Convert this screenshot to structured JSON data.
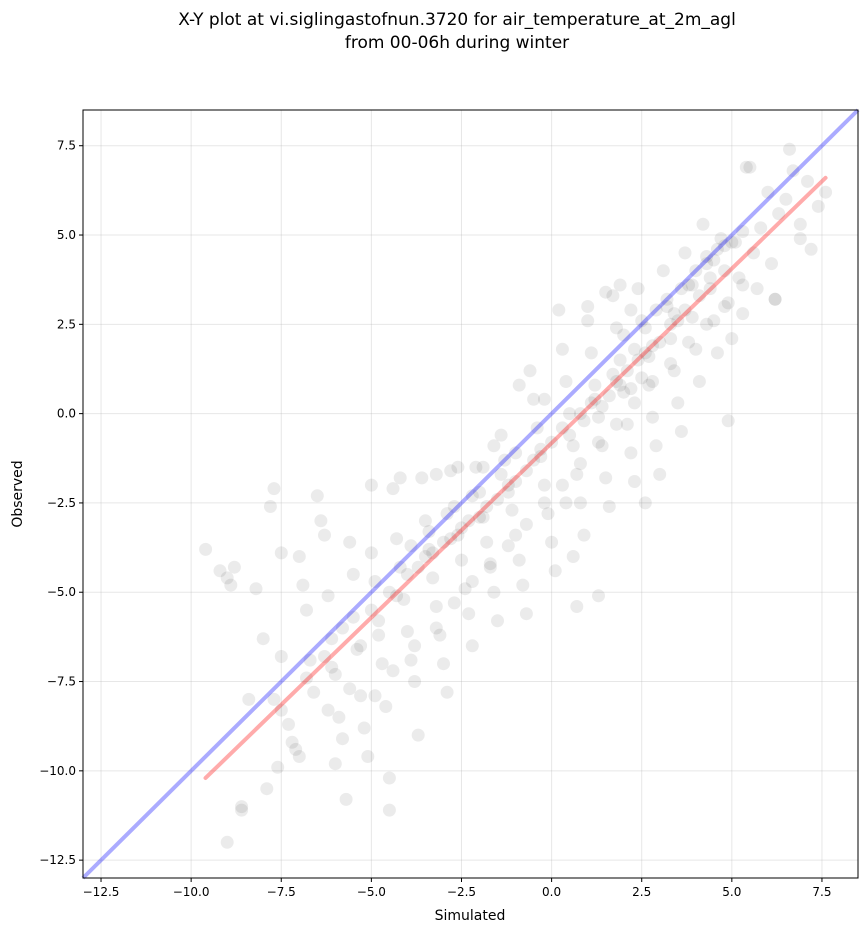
{
  "chart_data": {
    "type": "scatter",
    "title_lines": [
      "X-Y plot at vi.siglingastofnun.3720 for air_temperature_at_2m_agl",
      "from 00-06h during winter"
    ],
    "xlabel": "Simulated",
    "ylabel": "Observed",
    "xlim": [
      -13.0,
      8.5
    ],
    "ylim": [
      -13.0,
      8.5
    ],
    "xticks": [
      -12.5,
      -10.0,
      -7.5,
      -5.0,
      -2.5,
      0.0,
      2.5,
      5.0,
      7.5
    ],
    "yticks": [
      -12.5,
      -10.0,
      -7.5,
      -5.0,
      -2.5,
      0.0,
      2.5,
      5.0,
      7.5
    ],
    "xtick_labels": [
      "−12.5",
      "−10.0",
      "−7.5",
      "−5.0",
      "−2.5",
      "0.0",
      "2.5",
      "5.0",
      "7.5"
    ],
    "ytick_labels": [
      "−12.5",
      "−10.0",
      "−7.5",
      "−5.0",
      "−2.5",
      "0.0",
      "2.5",
      "5.0",
      "7.5"
    ],
    "grid": true,
    "point_color": "#000000",
    "identity_line_color": "#0000ff",
    "fit_line_color": "#ff0000",
    "identity_line": {
      "x": [
        -13.0,
        8.5
      ],
      "y": [
        -13.0,
        8.5
      ]
    },
    "fit_line": {
      "x": [
        -9.6,
        7.6
      ],
      "y": [
        -10.2,
        6.6
      ]
    },
    "points": [
      [
        -9.6,
        -3.8
      ],
      [
        -9.2,
        -4.4
      ],
      [
        -9.0,
        -4.6
      ],
      [
        -8.9,
        -4.8
      ],
      [
        -8.8,
        -4.3
      ],
      [
        -9.0,
        -12.0
      ],
      [
        -8.6,
        -11.0
      ],
      [
        -8.6,
        -11.1
      ],
      [
        -8.2,
        -4.9
      ],
      [
        -8.0,
        -6.3
      ],
      [
        -7.8,
        -2.6
      ],
      [
        -7.7,
        -2.1
      ],
      [
        -7.5,
        -3.9
      ],
      [
        -7.5,
        -6.8
      ],
      [
        -7.5,
        -8.3
      ],
      [
        -7.3,
        -8.7
      ],
      [
        -7.2,
        -9.2
      ],
      [
        -7.1,
        -9.4
      ],
      [
        -7.0,
        -9.6
      ],
      [
        -7.0,
        -4.0
      ],
      [
        -6.9,
        -4.8
      ],
      [
        -6.8,
        -5.5
      ],
      [
        -6.7,
        -6.9
      ],
      [
        -6.6,
        -7.8
      ],
      [
        -6.5,
        -2.3
      ],
      [
        -6.4,
        -3.0
      ],
      [
        -6.3,
        -3.4
      ],
      [
        -6.2,
        -5.1
      ],
      [
        -6.1,
        -6.3
      ],
      [
        -6.0,
        -7.3
      ],
      [
        -5.9,
        -8.5
      ],
      [
        -5.8,
        -9.1
      ],
      [
        -5.7,
        -10.8
      ],
      [
        -5.6,
        -3.6
      ],
      [
        -5.5,
        -4.5
      ],
      [
        -5.5,
        -5.7
      ],
      [
        -5.4,
        -6.6
      ],
      [
        -5.3,
        -7.9
      ],
      [
        -5.2,
        -8.8
      ],
      [
        -5.1,
        -9.6
      ],
      [
        -5.0,
        -2.0
      ],
      [
        -5.0,
        -3.9
      ],
      [
        -4.9,
        -4.7
      ],
      [
        -4.8,
        -5.8
      ],
      [
        -4.7,
        -7.0
      ],
      [
        -4.6,
        -8.2
      ],
      [
        -4.5,
        -10.2
      ],
      [
        -4.5,
        -11.1
      ],
      [
        -4.4,
        -2.1
      ],
      [
        -4.3,
        -3.5
      ],
      [
        -4.2,
        -4.3
      ],
      [
        -4.1,
        -5.2
      ],
      [
        -4.0,
        -6.1
      ],
      [
        -3.9,
        -6.9
      ],
      [
        -3.8,
        -7.5
      ],
      [
        -3.7,
        -9.0
      ],
      [
        -3.6,
        -1.8
      ],
      [
        -3.5,
        -3.0
      ],
      [
        -3.4,
        -3.8
      ],
      [
        -3.3,
        -4.6
      ],
      [
        -3.2,
        -5.4
      ],
      [
        -3.1,
        -6.2
      ],
      [
        -3.0,
        -7.0
      ],
      [
        -2.9,
        -7.8
      ],
      [
        -2.8,
        -1.6
      ],
      [
        -2.7,
        -2.6
      ],
      [
        -2.6,
        -3.4
      ],
      [
        -2.5,
        -4.1
      ],
      [
        -2.4,
        -4.9
      ],
      [
        -2.3,
        -5.6
      ],
      [
        -2.2,
        -6.5
      ],
      [
        -2.1,
        -1.5
      ],
      [
        -2.0,
        -2.2
      ],
      [
        -1.9,
        -2.9
      ],
      [
        -1.8,
        -3.6
      ],
      [
        -1.7,
        -4.3
      ],
      [
        -1.6,
        -5.0
      ],
      [
        -1.5,
        -5.8
      ],
      [
        -1.4,
        -0.6
      ],
      [
        -1.3,
        -1.3
      ],
      [
        -1.2,
        -2.0
      ],
      [
        -1.1,
        -2.7
      ],
      [
        -1.0,
        -3.4
      ],
      [
        -0.9,
        -4.1
      ],
      [
        -0.8,
        -4.8
      ],
      [
        -0.7,
        -5.6
      ],
      [
        -0.6,
        1.2
      ],
      [
        -0.5,
        0.4
      ],
      [
        -0.4,
        -0.4
      ],
      [
        -0.3,
        -1.2
      ],
      [
        -0.2,
        -2.0
      ],
      [
        -0.1,
        -2.8
      ],
      [
        0.0,
        -3.6
      ],
      [
        0.1,
        -4.4
      ],
      [
        0.2,
        2.9
      ],
      [
        0.3,
        1.8
      ],
      [
        0.4,
        0.9
      ],
      [
        0.5,
        0.0
      ],
      [
        0.6,
        -0.9
      ],
      [
        0.7,
        -1.7
      ],
      [
        0.8,
        -2.5
      ],
      [
        0.9,
        -3.4
      ],
      [
        1.0,
        2.6
      ],
      [
        1.1,
        1.7
      ],
      [
        1.2,
        0.8
      ],
      [
        1.3,
        -0.1
      ],
      [
        1.4,
        -0.9
      ],
      [
        1.5,
        -1.8
      ],
      [
        1.6,
        -2.6
      ],
      [
        1.7,
        3.3
      ],
      [
        1.8,
        2.4
      ],
      [
        1.9,
        1.5
      ],
      [
        2.0,
        0.6
      ],
      [
        2.1,
        -0.3
      ],
      [
        2.2,
        -1.1
      ],
      [
        2.3,
        -1.9
      ],
      [
        2.4,
        3.5
      ],
      [
        2.5,
        2.6
      ],
      [
        2.6,
        1.7
      ],
      [
        2.7,
        0.8
      ],
      [
        2.8,
        -0.1
      ],
      [
        2.9,
        -0.9
      ],
      [
        3.0,
        -1.7
      ],
      [
        3.1,
        4.0
      ],
      [
        3.2,
        3.0
      ],
      [
        3.3,
        2.1
      ],
      [
        3.4,
        1.2
      ],
      [
        3.5,
        0.3
      ],
      [
        3.6,
        -0.5
      ],
      [
        3.7,
        4.5
      ],
      [
        3.8,
        3.6
      ],
      [
        3.9,
        2.7
      ],
      [
        4.0,
        1.8
      ],
      [
        4.1,
        0.9
      ],
      [
        4.2,
        5.3
      ],
      [
        4.3,
        4.4
      ],
      [
        4.4,
        3.5
      ],
      [
        4.5,
        2.6
      ],
      [
        4.6,
        1.7
      ],
      [
        4.7,
        4.9
      ],
      [
        4.8,
        4.0
      ],
      [
        4.9,
        3.1
      ],
      [
        5.0,
        2.1
      ],
      [
        5.1,
        4.8
      ],
      [
        5.2,
        3.8
      ],
      [
        5.3,
        2.8
      ],
      [
        5.4,
        6.9
      ],
      [
        5.5,
        6.9
      ],
      [
        5.6,
        4.5
      ],
      [
        5.7,
        3.5
      ],
      [
        5.8,
        5.2
      ],
      [
        6.0,
        6.2
      ],
      [
        6.1,
        4.2
      ],
      [
        6.2,
        3.2
      ],
      [
        6.3,
        5.6
      ],
      [
        6.5,
        6.0
      ],
      [
        6.6,
        7.4
      ],
      [
        6.7,
        6.8
      ],
      [
        6.9,
        5.3
      ],
      [
        7.1,
        6.5
      ],
      [
        7.2,
        4.6
      ],
      [
        7.4,
        5.8
      ],
      [
        7.6,
        6.2
      ],
      [
        6.9,
        4.9
      ],
      [
        -7.9,
        -10.5
      ],
      [
        -7.6,
        -9.9
      ],
      [
        -6.2,
        -8.3
      ],
      [
        -6.0,
        -9.8
      ],
      [
        -4.2,
        -1.8
      ],
      [
        -3.2,
        -1.7
      ],
      [
        -2.6,
        -1.5
      ],
      [
        -1.9,
        -1.5
      ],
      [
        -1.6,
        -0.9
      ],
      [
        -1.0,
        -1.1
      ],
      [
        -0.9,
        0.8
      ],
      [
        -0.2,
        0.4
      ],
      [
        0.4,
        -2.5
      ],
      [
        0.6,
        -4.0
      ],
      [
        1.3,
        -5.1
      ],
      [
        2.6,
        -2.5
      ],
      [
        0.7,
        -5.4
      ],
      [
        1.0,
        3.0
      ],
      [
        1.5,
        3.4
      ],
      [
        1.9,
        3.6
      ],
      [
        2.2,
        2.9
      ],
      [
        3.5,
        2.6
      ],
      [
        4.9,
        -0.2
      ],
      [
        6.2,
        3.2
      ],
      [
        2.0,
        2.2
      ],
      [
        2.3,
        1.8
      ],
      [
        2.6,
        2.4
      ],
      [
        2.9,
        2.9
      ],
      [
        3.2,
        3.2
      ],
      [
        3.6,
        3.5
      ],
      [
        4.0,
        4.0
      ],
      [
        4.3,
        4.2
      ],
      [
        4.6,
        4.6
      ],
      [
        4.8,
        4.7
      ],
      [
        1.6,
        0.5
      ],
      [
        1.8,
        0.9
      ],
      [
        2.1,
        1.2
      ],
      [
        2.4,
        1.5
      ],
      [
        1.4,
        0.2
      ],
      [
        1.2,
        0.4
      ],
      [
        1.7,
        1.1
      ],
      [
        2.2,
        0.7
      ],
      [
        2.5,
        1.0
      ],
      [
        2.7,
        1.6
      ],
      [
        3.0,
        2.0
      ],
      [
        3.3,
        2.5
      ],
      [
        3.7,
        2.9
      ],
      [
        4.1,
        3.3
      ],
      [
        4.4,
        3.8
      ],
      [
        0.0,
        -0.8
      ],
      [
        -0.5,
        -1.3
      ],
      [
        -1.0,
        -1.9
      ],
      [
        -1.5,
        -2.4
      ],
      [
        -2.0,
        -2.9
      ],
      [
        -2.5,
        -3.2
      ],
      [
        -3.0,
        -3.6
      ],
      [
        -3.5,
        -4.0
      ],
      [
        -4.0,
        -4.5
      ],
      [
        -4.5,
        -5.0
      ],
      [
        -5.0,
        -5.5
      ],
      [
        -3.3,
        -3.9
      ],
      [
        -2.8,
        -3.5
      ],
      [
        -2.3,
        -3.0
      ],
      [
        -1.8,
        -2.6
      ],
      [
        -1.2,
        -2.2
      ],
      [
        -0.7,
        -1.6
      ],
      [
        0.3,
        -0.4
      ],
      [
        0.8,
        0.0
      ],
      [
        1.1,
        0.3
      ],
      [
        -3.7,
        -4.3
      ],
      [
        -4.3,
        -5.1
      ],
      [
        -3.9,
        -3.7
      ],
      [
        -3.4,
        -3.3
      ],
      [
        -2.9,
        -2.8
      ],
      [
        -2.2,
        -2.3
      ],
      [
        -1.4,
        -1.7
      ],
      [
        -0.3,
        -1.0
      ],
      [
        0.5,
        -0.6
      ],
      [
        0.9,
        -0.2
      ],
      [
        1.9,
        0.8
      ],
      [
        2.8,
        1.9
      ],
      [
        3.4,
        2.8
      ],
      [
        3.9,
        3.6
      ],
      [
        4.5,
        4.3
      ],
      [
        5.0,
        4.8
      ],
      [
        5.3,
        5.1
      ],
      [
        -6.3,
        -6.8
      ],
      [
        -5.8,
        -6.0
      ],
      [
        -5.3,
        -6.5
      ],
      [
        -4.8,
        -6.2
      ],
      [
        -4.4,
        -7.2
      ],
      [
        -3.8,
        -6.5
      ],
      [
        -3.2,
        -6.0
      ],
      [
        -2.7,
        -5.3
      ],
      [
        -2.2,
        -4.7
      ],
      [
        -1.7,
        -4.2
      ],
      [
        -1.2,
        -3.7
      ],
      [
        -0.7,
        -3.1
      ],
      [
        -0.2,
        -2.5
      ],
      [
        0.3,
        -2.0
      ],
      [
        0.8,
        -1.4
      ],
      [
        1.3,
        -0.8
      ],
      [
        1.8,
        -0.3
      ],
      [
        2.3,
        0.3
      ],
      [
        2.8,
        0.9
      ],
      [
        3.3,
        1.4
      ],
      [
        3.8,
        2.0
      ],
      [
        4.3,
        2.5
      ],
      [
        4.8,
        3.0
      ],
      [
        5.3,
        3.6
      ],
      [
        -8.4,
        -8.0
      ],
      [
        -7.7,
        -8.0
      ],
      [
        -6.8,
        -7.4
      ],
      [
        -6.1,
        -7.1
      ],
      [
        -5.6,
        -7.7
      ],
      [
        -4.9,
        -7.9
      ]
    ]
  }
}
